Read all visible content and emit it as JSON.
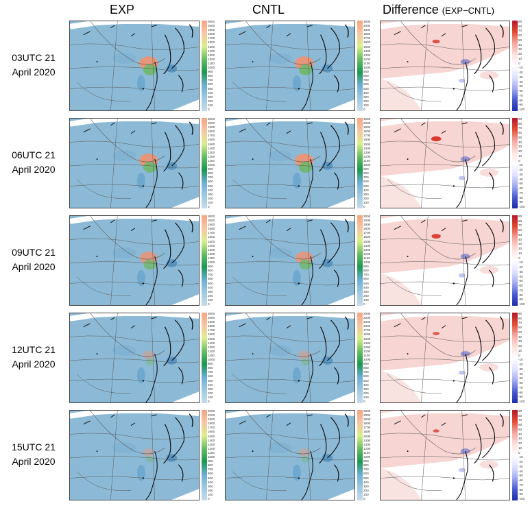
{
  "columns": [
    {
      "title": "EXP",
      "subtitle": ""
    },
    {
      "title": "CNTL",
      "subtitle": ""
    },
    {
      "title": "Difference",
      "subtitle": "(EXP−CNTL)"
    }
  ],
  "rows": [
    {
      "line1": "03UTC  21",
      "line2": "April 2020",
      "hotspot_intensity": 1.0,
      "diff_intensity": 0.6
    },
    {
      "line1": "06UTC  21",
      "line2": "April 2020",
      "hotspot_intensity": 1.0,
      "diff_intensity": 0.9
    },
    {
      "line1": "09UTC  21",
      "line2": "April 2020",
      "hotspot_intensity": 0.9,
      "diff_intensity": 0.8
    },
    {
      "line1": "12UTC  21",
      "line2": "April 2020",
      "hotspot_intensity": 0.5,
      "diff_intensity": 0.5
    },
    {
      "line1": "15UTC  21",
      "line2": "April 2020",
      "hotspot_intensity": 0.45,
      "diff_intensity": 0.45
    }
  ],
  "colorbars": {
    "value_ticks": [
      "3000",
      "2000",
      "1900",
      "1800",
      "1700",
      "1600",
      "1500",
      "1400",
      "1300",
      "1200",
      "1100",
      "1000",
      "900",
      "800",
      "700",
      "600",
      "500",
      "400",
      "300",
      "200",
      "100",
      "0"
    ],
    "diff_ticks": [
      "90",
      "80",
      "70",
      "60",
      "50",
      "40",
      "30",
      "20",
      "10",
      "0",
      "-10",
      "-20",
      "-30",
      "-40",
      "-50",
      "-60",
      "-70",
      "-80",
      "-90",
      "-100"
    ]
  },
  "colors": {
    "ocean_land_base": "#8cbad6",
    "hotspot": "#e6967a",
    "high_green": "#6fb86a",
    "diff_positive": "#f4c7c3",
    "diff_positive_strong": "#d73027",
    "diff_negative": "#4a5cd0",
    "coast": "#111111"
  }
}
